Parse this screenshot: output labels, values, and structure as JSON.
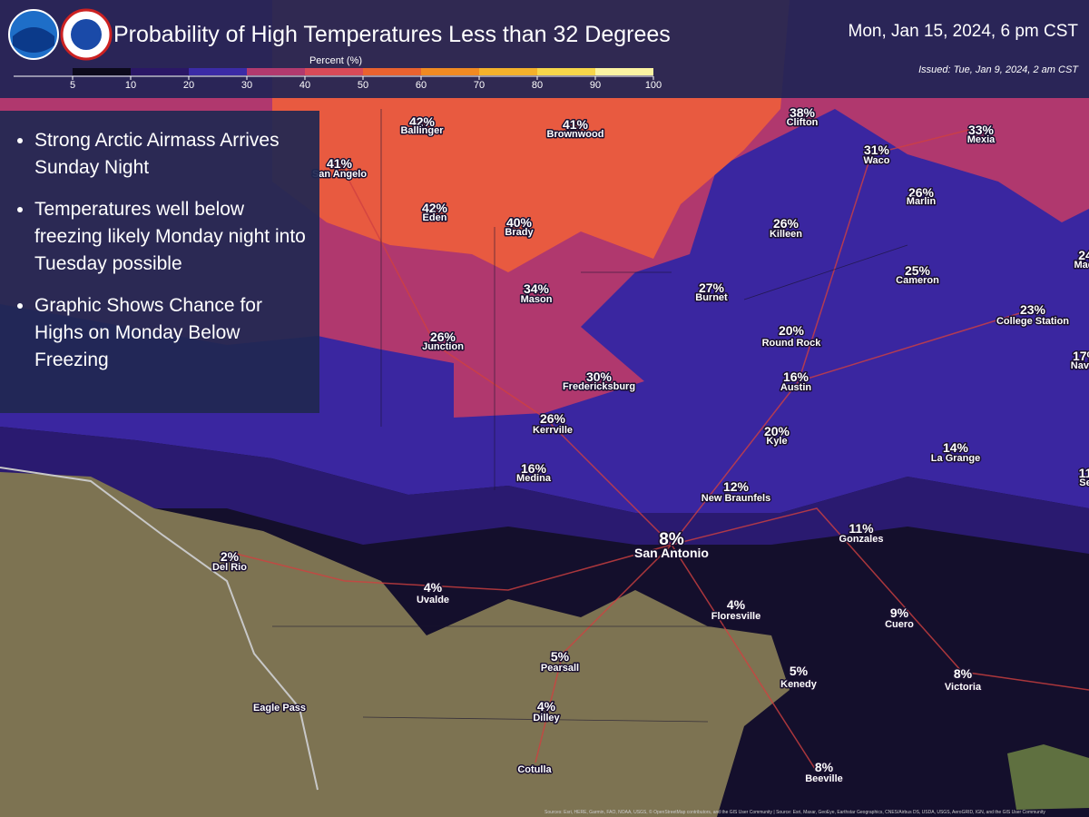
{
  "header": {
    "title": "Probability of High Temperatures Less than 32 Degrees",
    "valid_time": "Mon, Jan 15, 2024, 6 pm CST",
    "issued": "Issued: Tue, Jan 9, 2024, 2 am CST",
    "logos": [
      "NOAA",
      "National Weather Service"
    ]
  },
  "legend": {
    "title": "Percent (%)",
    "ticks": [
      5,
      10,
      20,
      30,
      40,
      50,
      60,
      70,
      80,
      90,
      100
    ],
    "colors": [
      "#0c0a1c",
      "#2a1766",
      "#3b2ba6",
      "#b13a6e",
      "#d84a58",
      "#e9622f",
      "#f08a22",
      "#f4b12b",
      "#f7d64a",
      "#fbf3a2"
    ]
  },
  "bullets": [
    "Strong Arctic Airmass Arrives Sunday Night",
    "Temperatures well below freezing likely Monday night into Tuesday possible",
    "Graphic Shows Chance for Highs on Monday Below Freezing"
  ],
  "cities": [
    {
      "name": "Ballinger",
      "pct": "42%"
    },
    {
      "name": "Brownwood",
      "pct": "41%"
    },
    {
      "name": "Clifton",
      "pct": "38%"
    },
    {
      "name": "Mexia",
      "pct": "33%"
    },
    {
      "name": "San Angelo",
      "pct": "41%"
    },
    {
      "name": "Waco",
      "pct": "31%"
    },
    {
      "name": "Marlin",
      "pct": "26%"
    },
    {
      "name": "Eden",
      "pct": "42%"
    },
    {
      "name": "Brady",
      "pct": "40%"
    },
    {
      "name": "Killeen",
      "pct": "26%"
    },
    {
      "name": "Cameron",
      "pct": "25%"
    },
    {
      "name": "Burnet",
      "pct": "27%"
    },
    {
      "name": "Mason",
      "pct": "34%"
    },
    {
      "name": "College Station",
      "pct": "23%"
    },
    {
      "name": "Round Rock",
      "pct": "20%"
    },
    {
      "name": "Junction",
      "pct": "26%"
    },
    {
      "name": "Austin",
      "pct": "16%"
    },
    {
      "name": "Fredericksburg",
      "pct": "30%"
    },
    {
      "name": "Kerrville",
      "pct": "26%"
    },
    {
      "name": "Kyle",
      "pct": "20%"
    },
    {
      "name": "La Grange",
      "pct": "14%"
    },
    {
      "name": "Medina",
      "pct": "16%"
    },
    {
      "name": "New Braunfels",
      "pct": "12%"
    },
    {
      "name": "Gonzales",
      "pct": "11%"
    },
    {
      "name": "San Antonio",
      "pct": "8%"
    },
    {
      "name": "Del Rio",
      "pct": "2%"
    },
    {
      "name": "Uvalde",
      "pct": "4%"
    },
    {
      "name": "Floresville",
      "pct": "4%"
    },
    {
      "name": "Cuero",
      "pct": "9%"
    },
    {
      "name": "Pearsall",
      "pct": "5%"
    },
    {
      "name": "Kenedy",
      "pct": "5%"
    },
    {
      "name": "Victoria",
      "pct": "8%"
    },
    {
      "name": "Eagle Pass"
    },
    {
      "name": "Dilley",
      "pct": "4%"
    },
    {
      "name": "Cotulla"
    },
    {
      "name": "Beeville",
      "pct": "8%"
    },
    {
      "name": "Madi",
      "pct": "24"
    },
    {
      "name": "Navas",
      "pct": "17%"
    },
    {
      "name": "Se",
      "pct": "11"
    }
  ],
  "attribution": "Sources: Esri, HERE, Garmin, FAO, NOAA, USGS, © OpenStreetMap contributors, and the GIS User Community | Source: Esri, Maxar, GeoEye, Earthstar Geographics, CNES/Airbus DS, USDA, USGS, AeroGRID, IGN, and the GIS User Community"
}
